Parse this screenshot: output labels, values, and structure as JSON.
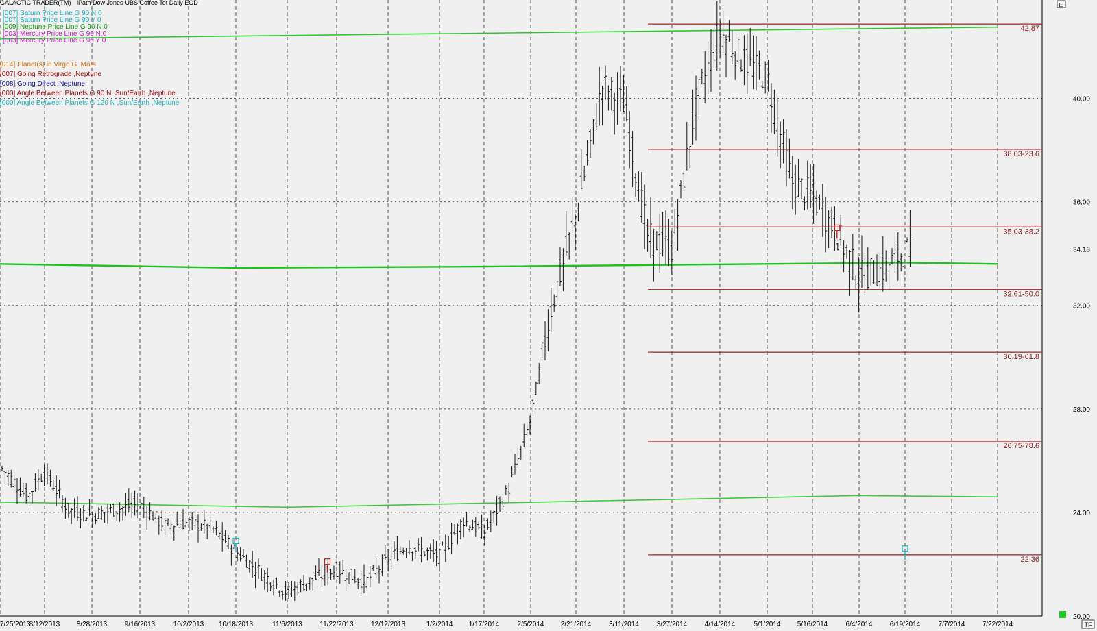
{
  "header": {
    "app_name": "GALACTIC TRADER(TM)",
    "title": "iPath Dow Jones-UBS Coffee Tot Daily EOD"
  },
  "legend": [
    {
      "text": "[007] Saturn Price Line G 90 N 0",
      "color": "#20b0c0"
    },
    {
      "text": "[007] Saturn Price Line G 90 Y 0",
      "color": "#20b0c0"
    },
    {
      "text": "[009] Neptune Price Line G 90 N 0",
      "color": "#10a010"
    },
    {
      "text": "[003] Mercury Price Line G 90 N 0",
      "color": "#c020c0"
    },
    {
      "text": "[003] Mercury Price Line G 90 Y 0",
      "color": "#c020c0"
    }
  ],
  "events": [
    {
      "text": "[014] Planet(s) in Virgo G ,Mars",
      "color": "#d07010"
    },
    {
      "text": "[007] Going Retrograde ,Neptune",
      "color": "#a01010"
    },
    {
      "text": "[008] Going Direct ,Neptune",
      "color": "#101090"
    },
    {
      "text": "[000] Angle Between Planets G 90 N ,Sun/Earth ,Neptune",
      "color": "#a01010"
    },
    {
      "text": "[000] Angle Between Planets G 120 N ,Sun/Earth ,Neptune",
      "color": "#20b0c0"
    }
  ],
  "chart_data": {
    "type": "bar",
    "style": "ohlc",
    "ylim": [
      20.0,
      43.8
    ],
    "y_ticks": [
      "20.00",
      "24.00",
      "28.00",
      "32.00",
      "36.00",
      "40.00"
    ],
    "last_price": "34.18",
    "x_ticks": [
      "7/25/2013",
      "8/12/2013",
      "8/28/2013",
      "9/16/2013",
      "10/2/2013",
      "10/18/2013",
      "11/6/2013",
      "11/22/2013",
      "12/12/2013",
      "1/2/2014",
      "1/17/2014",
      "2/5/2014",
      "2/21/2014",
      "3/11/2014",
      "3/27/2014",
      "4/14/2014",
      "5/1/2014",
      "5/16/2014",
      "6/4/2014",
      "6/19/2014",
      "7/7/2014",
      "7/22/2014"
    ],
    "grid": true,
    "fib_levels": [
      {
        "price": 42.87,
        "label": "42.87"
      },
      {
        "price": 38.03,
        "label": "38.03-23.6"
      },
      {
        "price": 35.03,
        "label": "35.03-38.2"
      },
      {
        "price": 32.61,
        "label": "32.61-50.0"
      },
      {
        "price": 30.19,
        "label": "30.19-61.8"
      },
      {
        "price": 26.75,
        "label": "26.75-78.6"
      },
      {
        "price": 22.36,
        "label": "22.36"
      }
    ],
    "planet_lines": [
      {
        "name": "Neptune Price Line",
        "color": "#2ec82e",
        "points": [
          [
            "7/25/2013",
            42.3
          ],
          [
            "7/22/2014",
            42.75
          ]
        ]
      },
      {
        "name": "Neptune Price Line",
        "color": "#22c022",
        "points": [
          [
            "7/25/2013",
            33.6
          ],
          [
            "10/18/2013",
            33.45
          ],
          [
            "1/17/2014",
            33.5
          ],
          [
            "6/19/2014",
            33.65
          ],
          [
            "7/22/2014",
            33.6
          ]
        ]
      },
      {
        "name": "Neptune Price Line",
        "color": "#40c840",
        "points": [
          [
            "7/25/2013",
            24.4
          ],
          [
            "11/6/2013",
            24.2
          ],
          [
            "6/4/2014",
            24.65
          ],
          [
            "7/22/2014",
            24.6
          ]
        ]
      }
    ],
    "price_path": [
      [
        "7/25/2013",
        25.8
      ],
      [
        "8/5/2013",
        24.6
      ],
      [
        "8/12/2013",
        25.6
      ],
      [
        "8/20/2013",
        24.1
      ],
      [
        "8/28/2013",
        23.9
      ],
      [
        "9/10/2013",
        24.2
      ],
      [
        "9/16/2013",
        24.3
      ],
      [
        "9/24/2013",
        23.5
      ],
      [
        "10/2/2013",
        23.6
      ],
      [
        "10/10/2013",
        23.4
      ],
      [
        "10/18/2013",
        22.5
      ],
      [
        "10/28/2013",
        21.6
      ],
      [
        "11/6/2013",
        20.9
      ],
      [
        "11/14/2013",
        21.4
      ],
      [
        "11/22/2013",
        21.8
      ],
      [
        "12/3/2013",
        21.3
      ],
      [
        "12/12/2013",
        22.2
      ],
      [
        "12/20/2013",
        22.7
      ],
      [
        "1/2/2014",
        22.3
      ],
      [
        "1/10/2014",
        23.7
      ],
      [
        "1/17/2014",
        23.2
      ],
      [
        "1/27/2014",
        24.9
      ],
      [
        "2/5/2014",
        27.6
      ],
      [
        "2/12/2014",
        31.8
      ],
      [
        "2/21/2014",
        35.5
      ],
      [
        "3/3/2014",
        40.5
      ],
      [
        "3/11/2014",
        39.8
      ],
      [
        "3/19/2014",
        34.6
      ],
      [
        "3/27/2014",
        34.2
      ],
      [
        "4/5/2014",
        39.8
      ],
      [
        "4/14/2014",
        42.6
      ],
      [
        "4/22/2014",
        41.5
      ],
      [
        "5/1/2014",
        40.8
      ],
      [
        "5/9/2014",
        36.8
      ],
      [
        "5/16/2014",
        36.2
      ],
      [
        "5/26/2014",
        34.8
      ],
      [
        "6/4/2014",
        33.1
      ],
      [
        "6/12/2014",
        33.4
      ],
      [
        "6/19/2014",
        34.1
      ]
    ]
  },
  "markers": [
    {
      "date": "10/18/2013",
      "price": 22.9,
      "color": "#20b0c0"
    },
    {
      "date": "11/19/2013",
      "price": 22.1,
      "color": "#c02020"
    },
    {
      "date": "5/26/2014",
      "price": 35.0,
      "color": "#c02020"
    },
    {
      "date": "6/19/2014",
      "price": 22.6,
      "color": "#20b0c0"
    }
  ],
  "corner_top": "⊟",
  "corner_bottom": "TF"
}
